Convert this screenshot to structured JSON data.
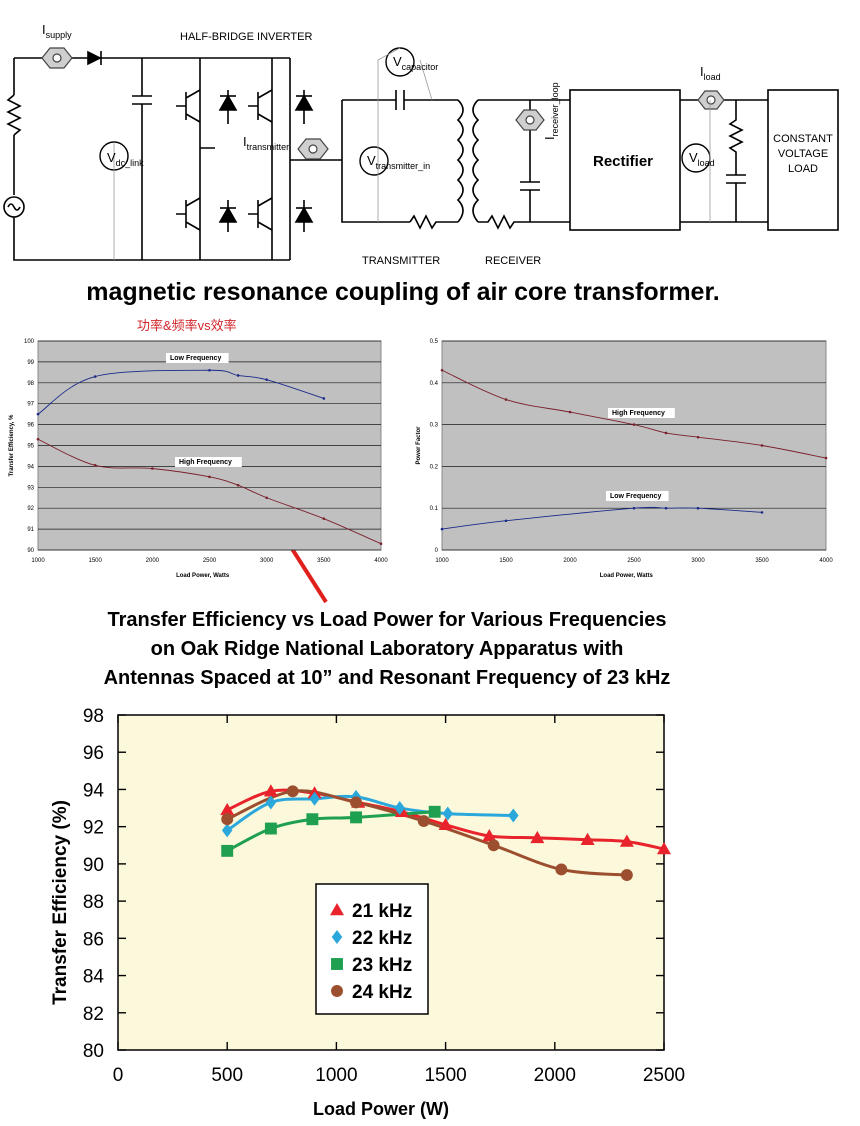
{
  "circuit": {
    "labels": {
      "i_supply": "I",
      "i_supply_sub": "supply",
      "half_bridge": "HALF-BRIDGE INVERTER",
      "v_dc_link": "V",
      "v_dc_link_sub": "dc_link",
      "i_transmitter": "I",
      "i_transmitter_sub": "transmitter",
      "v_capacitor": "V",
      "v_capacitor_sub": "capacitor",
      "v_transmitter_in": "V",
      "v_transmitter_in_sub": "transmitter_in",
      "i_receiver_loop": "I",
      "i_receiver_loop_sub": "receiver_loop",
      "rectifier": "Rectifier",
      "i_load": "I",
      "i_load_sub": "load",
      "v_load": "V",
      "v_load_sub": "load",
      "constant_voltage_load": [
        "CONSTANT",
        "VOLTAGE",
        "LOAD"
      ],
      "transmitter": "TRANSMITTER",
      "receiver": "RECEIVER"
    },
    "caption": "magnetic resonance coupling of air core transformer."
  },
  "annotation_cn": "功率&频率vs效率",
  "chart_data": [
    {
      "type": "line",
      "id": "efficiency-small",
      "xlabel": "Load Power, Watts",
      "ylabel": "Transfer Efficiency, %",
      "xlim": [
        1000,
        4000
      ],
      "ylim": [
        90,
        100
      ],
      "x_ticks": [
        "1000",
        "1500",
        "2000",
        "2500",
        "3000",
        "3500",
        "4000"
      ],
      "y_ticks": [
        "90",
        "91",
        "92",
        "93",
        "94",
        "95",
        "96",
        "97",
        "98",
        "99",
        "100"
      ],
      "grid": true,
      "background": "#c0c0c0",
      "series": [
        {
          "name": "Low Frequency",
          "color": "#1a2a8a",
          "x": [
            1000,
            1500,
            2500,
            2750,
            3000,
            3500
          ],
          "y": [
            96.5,
            98.3,
            98.6,
            98.35,
            98.15,
            97.25
          ]
        },
        {
          "name": "High Frequency",
          "color": "#7a1f2a",
          "x": [
            1000,
            1500,
            2000,
            2500,
            2750,
            3000,
            3500,
            4000
          ],
          "y": [
            95.3,
            94.05,
            93.9,
            93.5,
            93.1,
            92.5,
            91.5,
            90.3
          ]
        }
      ]
    },
    {
      "type": "line",
      "id": "power-factor-small",
      "xlabel": "Load Power, Watts",
      "ylabel": "Power Factor",
      "xlim": [
        1000,
        4000
      ],
      "ylim": [
        0,
        0.5
      ],
      "x_ticks": [
        "1000",
        "1500",
        "2000",
        "2500",
        "3000",
        "3500",
        "4000"
      ],
      "y_ticks": [
        "0",
        "0.1",
        "0.2",
        "0.3",
        "0.4",
        "0.5"
      ],
      "grid": true,
      "background": "#c0c0c0",
      "series": [
        {
          "name": "High Frequency",
          "color": "#7a1f2a",
          "x": [
            1000,
            1500,
            2000,
            2500,
            2750,
            3000,
            3500,
            4000
          ],
          "y": [
            0.43,
            0.36,
            0.33,
            0.3,
            0.28,
            0.27,
            0.25,
            0.22
          ]
        },
        {
          "name": "Low Frequency",
          "color": "#1a2a8a",
          "x": [
            1000,
            1500,
            2500,
            2750,
            3000,
            3500
          ],
          "y": [
            0.05,
            0.07,
            0.1,
            0.1,
            0.1,
            0.09
          ]
        }
      ]
    },
    {
      "type": "line",
      "id": "efficiency-large",
      "title": [
        "Transfer Efficiency vs Load Power for Various Frequencies",
        "on Oak Ridge National Laboratory Apparatus with",
        "Antennas Spaced at 10” and Resonant Frequency of 23 kHz"
      ],
      "xlabel": "Load Power (W)",
      "ylabel": "Transfer Efficiency (%)",
      "xlim": [
        0,
        2500
      ],
      "ylim": [
        80,
        98
      ],
      "x_ticks": [
        "0",
        "500",
        "1000",
        "1500",
        "2000",
        "2500"
      ],
      "y_ticks": [
        "80",
        "82",
        "84",
        "86",
        "88",
        "90",
        "92",
        "94",
        "96",
        "98"
      ],
      "grid": false,
      "background": "#fcf8dc",
      "legend_position": "lower-left",
      "series": [
        {
          "name": "21 kHz",
          "marker": "triangle",
          "color": "#e8232b",
          "x": [
            500,
            700,
            900,
            1100,
            1300,
            1500,
            1700,
            1920,
            2150,
            2330,
            2500
          ],
          "y": [
            92.9,
            93.9,
            93.8,
            93.3,
            92.8,
            92.1,
            91.5,
            91.4,
            91.3,
            91.2,
            90.8
          ]
        },
        {
          "name": "22 kHz",
          "marker": "diamond",
          "color": "#2aa8dc",
          "x": [
            500,
            700,
            900,
            1090,
            1290,
            1510,
            1810
          ],
          "y": [
            91.8,
            93.3,
            93.5,
            93.6,
            93.0,
            92.7,
            92.6
          ]
        },
        {
          "name": "23 kHz",
          "marker": "square",
          "color": "#1fa050",
          "x": [
            500,
            700,
            890,
            1090,
            1450
          ],
          "y": [
            90.7,
            91.9,
            92.4,
            92.5,
            92.8
          ]
        },
        {
          "name": "24 kHz",
          "marker": "circle",
          "color": "#9b4f2e",
          "x": [
            500,
            800,
            1090,
            1400,
            1720,
            2030,
            2330
          ],
          "y": [
            92.4,
            93.9,
            93.3,
            92.3,
            91.0,
            89.7,
            89.4
          ]
        }
      ]
    }
  ]
}
